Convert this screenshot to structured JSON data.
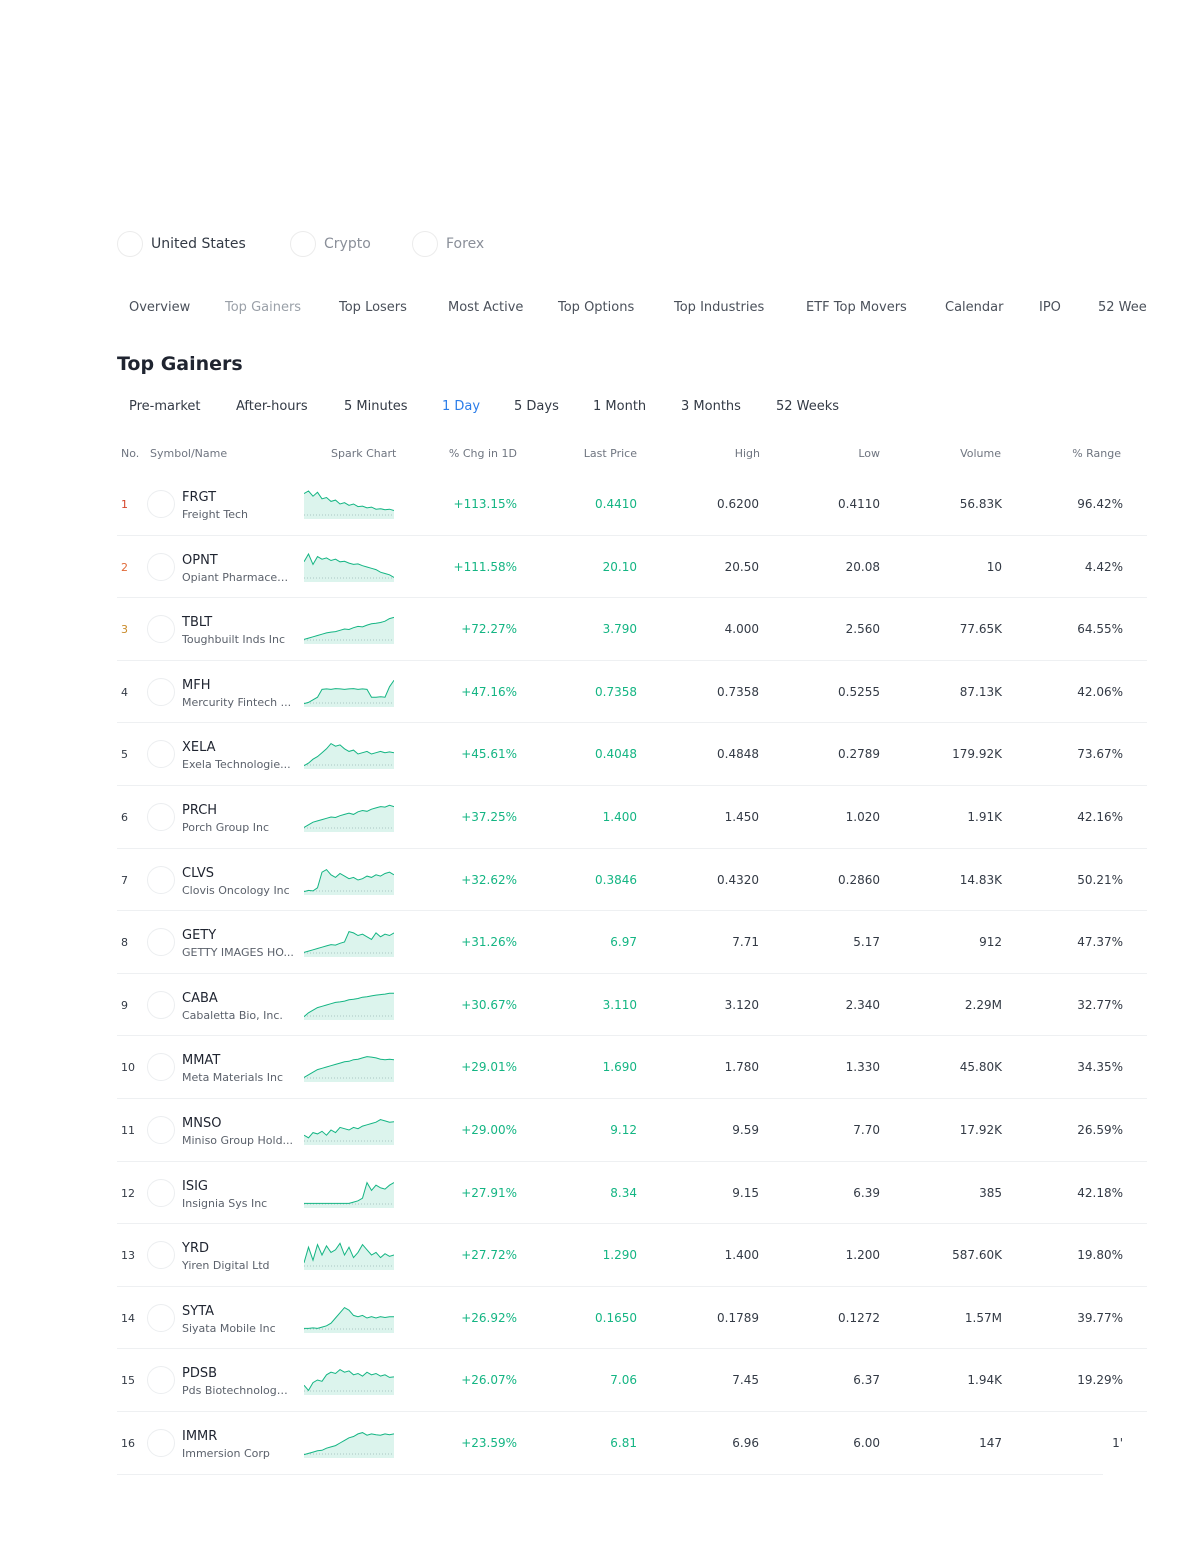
{
  "markets": [
    "United States",
    "Crypto",
    "Forex"
  ],
  "nav": [
    "Overview",
    "Top Gainers",
    "Top Losers",
    "Most Active",
    "Top Options",
    "Top Industries",
    "ETF Top Movers",
    "Calendar",
    "IPO",
    "52 Wee"
  ],
  "title": "Top Gainers",
  "periods": [
    "Pre-market",
    "After-hours",
    "5 Minutes",
    "1 Day",
    "5 Days",
    "1 Month",
    "3 Months",
    "52 Weeks"
  ],
  "columns": {
    "no": "No.",
    "symbol": "Symbol/Name",
    "spark": "Spark Chart",
    "chg": "% Chg in 1D",
    "last": "Last Price",
    "high": "High",
    "low": "Low",
    "volume": "Volume",
    "range": "% Range"
  },
  "colors": {
    "gain": "#14b583",
    "rank1": "#d4452b",
    "rank2": "#e06a38",
    "rank3": "#c98b2a",
    "active_period": "#2b7de9"
  },
  "rows": [
    {
      "no": "1",
      "symbol": "FRGT",
      "name": "Freight Tech",
      "chg": "+113.15%",
      "last": "0.4410",
      "high": "0.6200",
      "low": "0.4110",
      "volume": "56.83K",
      "range": "96.42%",
      "spark": [
        0.9,
        1,
        0.8,
        0.95,
        0.7,
        0.75,
        0.6,
        0.65,
        0.5,
        0.55,
        0.45,
        0.5,
        0.4,
        0.42,
        0.35,
        0.38,
        0.3,
        0.32,
        0.28,
        0.3,
        0.25
      ]
    },
    {
      "no": "2",
      "symbol": "OPNT",
      "name": "Opiant Pharmaceu...",
      "chg": "+111.58%",
      "last": "20.10",
      "high": "20.50",
      "low": "20.08",
      "volume": "10",
      "range": "4.42%",
      "spark": [
        0.7,
        1,
        0.6,
        0.9,
        0.8,
        0.85,
        0.75,
        0.8,
        0.7,
        0.72,
        0.65,
        0.6,
        0.62,
        0.55,
        0.5,
        0.45,
        0.4,
        0.3,
        0.25,
        0.2,
        0.1
      ]
    },
    {
      "no": "3",
      "symbol": "TBLT",
      "name": "Toughbuilt Inds Inc",
      "chg": "+72.27%",
      "last": "3.790",
      "high": "4.000",
      "low": "2.560",
      "volume": "77.65K",
      "range": "64.55%",
      "spark": [
        0.1,
        0.15,
        0.2,
        0.25,
        0.3,
        0.35,
        0.38,
        0.4,
        0.45,
        0.5,
        0.48,
        0.55,
        0.6,
        0.58,
        0.65,
        0.7,
        0.72,
        0.75,
        0.8,
        0.9,
        0.95
      ]
    },
    {
      "no": "4",
      "symbol": "MFH",
      "name": "Mercurity Fintech ...",
      "chg": "+47.16%",
      "last": "0.7358",
      "high": "0.7358",
      "low": "0.5255",
      "volume": "87.13K",
      "range": "42.06%",
      "spark": [
        0.05,
        0.1,
        0.2,
        0.3,
        0.6,
        0.62,
        0.6,
        0.63,
        0.62,
        0.6,
        0.62,
        0.63,
        0.6,
        0.62,
        0.6,
        0.3,
        0.3,
        0.32,
        0.3,
        0.7,
        0.95
      ]
    },
    {
      "no": "5",
      "symbol": "XELA",
      "name": "Exela Technologie...",
      "chg": "+45.61%",
      "last": "0.4048",
      "high": "0.4848",
      "low": "0.2789",
      "volume": "179.92K",
      "range": "73.67%",
      "spark": [
        0.05,
        0.15,
        0.3,
        0.4,
        0.55,
        0.7,
        0.9,
        0.8,
        0.85,
        0.7,
        0.6,
        0.65,
        0.5,
        0.55,
        0.6,
        0.5,
        0.55,
        0.6,
        0.55,
        0.58,
        0.55
      ]
    },
    {
      "no": "6",
      "symbol": "PRCH",
      "name": "Porch Group Inc",
      "chg": "+37.25%",
      "last": "1.400",
      "high": "1.450",
      "low": "1.020",
      "volume": "1.91K",
      "range": "42.16%",
      "spark": [
        0.1,
        0.2,
        0.3,
        0.35,
        0.4,
        0.45,
        0.5,
        0.48,
        0.55,
        0.6,
        0.65,
        0.6,
        0.7,
        0.75,
        0.72,
        0.8,
        0.85,
        0.9,
        0.88,
        0.95,
        0.9
      ]
    },
    {
      "no": "7",
      "symbol": "CLVS",
      "name": "Clovis Oncology Inc",
      "chg": "+32.62%",
      "last": "0.3846",
      "high": "0.4320",
      "low": "0.2860",
      "volume": "14.83K",
      "range": "50.21%",
      "spark": [
        0.05,
        0.1,
        0.08,
        0.2,
        0.8,
        0.9,
        0.7,
        0.6,
        0.75,
        0.65,
        0.55,
        0.6,
        0.5,
        0.55,
        0.65,
        0.6,
        0.7,
        0.65,
        0.75,
        0.8,
        0.7
      ]
    },
    {
      "no": "8",
      "symbol": "GETY",
      "name": "GETTY IMAGES HO...",
      "chg": "+31.26%",
      "last": "6.97",
      "high": "7.71",
      "low": "5.17",
      "volume": "912",
      "range": "47.37%",
      "spark": [
        0.1,
        0.15,
        0.2,
        0.25,
        0.3,
        0.35,
        0.4,
        0.38,
        0.45,
        0.5,
        0.9,
        0.85,
        0.75,
        0.8,
        0.7,
        0.6,
        0.85,
        0.7,
        0.8,
        0.75,
        0.85
      ]
    },
    {
      "no": "9",
      "symbol": "CABA",
      "name": "Cabaletta Bio, Inc.",
      "chg": "+30.67%",
      "last": "3.110",
      "high": "3.120",
      "low": "2.340",
      "volume": "2.29M",
      "range": "32.77%",
      "spark": [
        0.05,
        0.2,
        0.3,
        0.4,
        0.45,
        0.5,
        0.55,
        0.6,
        0.62,
        0.65,
        0.7,
        0.72,
        0.75,
        0.8,
        0.82,
        0.85,
        0.88,
        0.9,
        0.92,
        0.95,
        0.95
      ]
    },
    {
      "no": "10",
      "symbol": "MMAT",
      "name": "Meta Materials Inc",
      "chg": "+29.01%",
      "last": "1.690",
      "high": "1.780",
      "low": "1.330",
      "volume": "45.80K",
      "range": "34.35%",
      "spark": [
        0.1,
        0.2,
        0.3,
        0.4,
        0.45,
        0.5,
        0.55,
        0.6,
        0.65,
        0.7,
        0.72,
        0.78,
        0.8,
        0.85,
        0.9,
        0.88,
        0.85,
        0.8,
        0.78,
        0.8,
        0.78
      ]
    },
    {
      "no": "11",
      "symbol": "MNSO",
      "name": "Miniso Group Hold...",
      "chg": "+29.00%",
      "last": "9.12",
      "high": "9.59",
      "low": "7.70",
      "volume": "17.92K",
      "range": "26.59%",
      "spark": [
        0.3,
        0.2,
        0.4,
        0.35,
        0.45,
        0.3,
        0.5,
        0.4,
        0.6,
        0.55,
        0.5,
        0.6,
        0.55,
        0.65,
        0.7,
        0.75,
        0.8,
        0.9,
        0.85,
        0.8,
        0.82
      ]
    },
    {
      "no": "12",
      "symbol": "ISIG",
      "name": "Insignia Sys Inc",
      "chg": "+27.91%",
      "last": "8.34",
      "high": "9.15",
      "low": "6.39",
      "volume": "385",
      "range": "42.18%",
      "spark": [
        0.1,
        0.1,
        0.1,
        0.1,
        0.1,
        0.1,
        0.1,
        0.1,
        0.1,
        0.1,
        0.1,
        0.15,
        0.2,
        0.3,
        0.9,
        0.6,
        0.8,
        0.7,
        0.65,
        0.8,
        0.9
      ]
    },
    {
      "no": "13",
      "symbol": "YRD",
      "name": "Yiren Digital Ltd",
      "chg": "+27.72%",
      "last": "1.290",
      "high": "1.400",
      "low": "1.200",
      "volume": "587.60K",
      "range": "19.80%",
      "spark": [
        0.2,
        0.8,
        0.3,
        0.9,
        0.5,
        0.85,
        0.6,
        0.7,
        0.95,
        0.5,
        0.8,
        0.4,
        0.6,
        0.9,
        0.7,
        0.5,
        0.6,
        0.4,
        0.55,
        0.45,
        0.5
      ]
    },
    {
      "no": "14",
      "symbol": "SYTA",
      "name": "Siyata Mobile Inc",
      "chg": "+26.92%",
      "last": "0.1650",
      "high": "0.1789",
      "low": "0.1272",
      "volume": "1.57M",
      "range": "39.77%",
      "spark": [
        0.1,
        0.1,
        0.12,
        0.1,
        0.15,
        0.2,
        0.3,
        0.5,
        0.7,
        0.9,
        0.8,
        0.6,
        0.55,
        0.6,
        0.5,
        0.55,
        0.5,
        0.55,
        0.52,
        0.55,
        0.55
      ]
    },
    {
      "no": "15",
      "symbol": "PDSB",
      "name": "Pds Biotechnology ...",
      "chg": "+26.07%",
      "last": "7.06",
      "high": "7.45",
      "low": "6.37",
      "volume": "1.94K",
      "range": "19.29%",
      "spark": [
        0.3,
        0.1,
        0.4,
        0.5,
        0.45,
        0.7,
        0.8,
        0.75,
        0.9,
        0.8,
        0.85,
        0.7,
        0.75,
        0.65,
        0.8,
        0.7,
        0.75,
        0.65,
        0.7,
        0.6,
        0.62
      ]
    },
    {
      "no": "16",
      "symbol": "IMMR",
      "name": "Immersion Corp",
      "chg": "+23.59%",
      "last": "6.81",
      "high": "6.96",
      "low": "6.00",
      "volume": "147",
      "range": "1'",
      "spark": [
        0.05,
        0.1,
        0.15,
        0.2,
        0.22,
        0.3,
        0.35,
        0.4,
        0.5,
        0.6,
        0.7,
        0.75,
        0.85,
        0.9,
        0.8,
        0.85,
        0.82,
        0.8,
        0.85,
        0.82,
        0.85
      ]
    }
  ]
}
